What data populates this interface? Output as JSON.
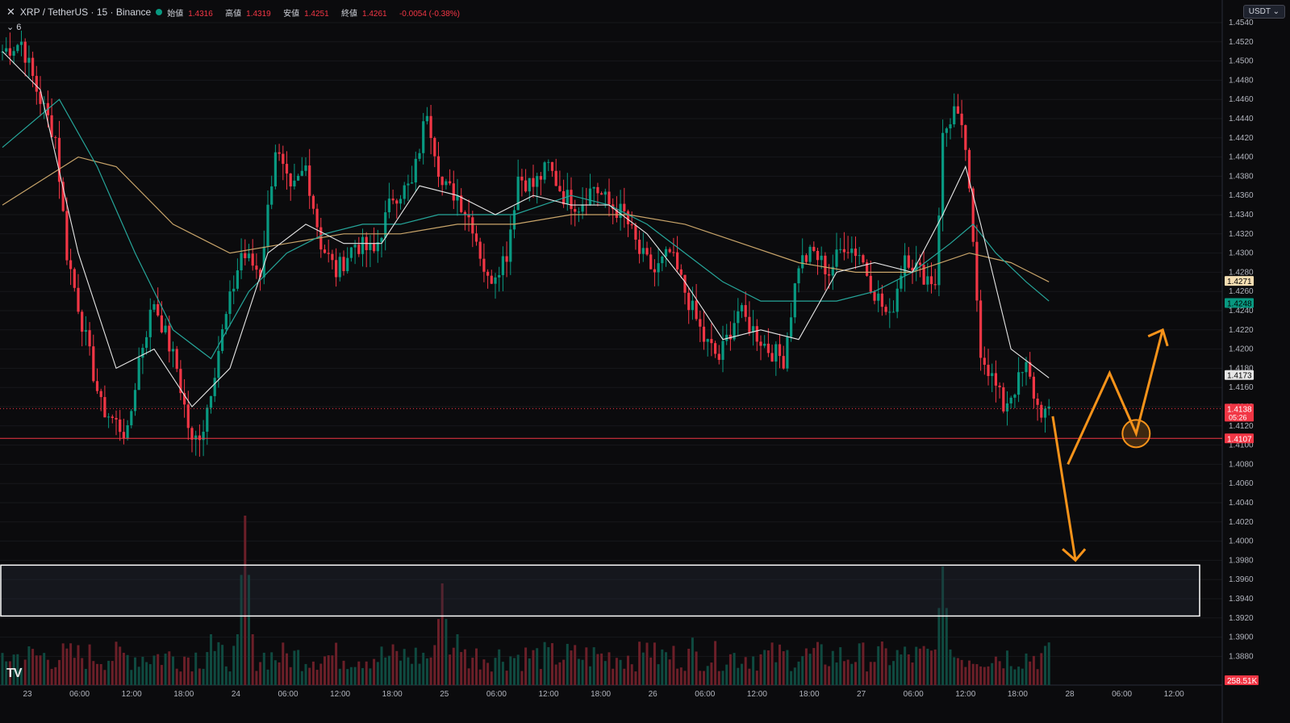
{
  "header": {
    "close_icon": "close-icon",
    "symbol": "XRP / TetherUS · 15 · Binance",
    "open_label": "始値",
    "open": "1.4316",
    "high_label": "高値",
    "high": "1.4319",
    "low_label": "安値",
    "low": "1.4251",
    "close_label": "終値",
    "close": "1.4261",
    "change": "-0.0054 (-0.38%)",
    "indicator_toggle": "6"
  },
  "currency_button": "USDT",
  "logo": "TV",
  "colors": {
    "up": "#089981",
    "down": "#f23645",
    "ma_fast": "#e6e6e6",
    "ma_mid": "#26a69a",
    "ma_slow": "#c9a56a",
    "arrow": "#f7931a",
    "zone": "#ffffff"
  },
  "price_axis": {
    "ticks": [
      "1.4540",
      "1.4520",
      "1.4500",
      "1.4480",
      "1.4460",
      "1.4440",
      "1.4420",
      "1.4400",
      "1.4380",
      "1.4360",
      "1.4340",
      "1.4320",
      "1.4300",
      "1.4280",
      "1.4260",
      "1.4240",
      "1.4220",
      "1.4200",
      "1.4180",
      "1.4160",
      "1.4140",
      "1.4120",
      "1.4100",
      "1.4080",
      "1.4060",
      "1.4040",
      "1.4020",
      "1.4000",
      "1.3980",
      "1.3960",
      "1.3940",
      "1.3920",
      "1.3900",
      "1.3880"
    ],
    "markers": [
      {
        "value": "1.4271",
        "bg": "#f5deb3",
        "fg": "#000000",
        "price": 1.4271
      },
      {
        "value": "1.4248",
        "bg": "#089981",
        "fg": "#000000",
        "price": 1.4248
      },
      {
        "value": "1.4173",
        "bg": "#e6e6e6",
        "fg": "#000000",
        "price": 1.4173
      },
      {
        "value": "1.4138",
        "sub": "05:26",
        "bg": "#f23645",
        "fg": "#ffffff",
        "price": 1.4138
      },
      {
        "value": "1.4107",
        "bg": "#f23645",
        "fg": "#ffffff",
        "price": 1.4107
      }
    ],
    "volume_label": "258.51K"
  },
  "time_axis": [
    "23",
    "06:00",
    "12:00",
    "18:00",
    "24",
    "06:00",
    "12:00",
    "18:00",
    "25",
    "06:00",
    "12:00",
    "18:00",
    "26",
    "06:00",
    "12:00",
    "18:00",
    "27",
    "06:00",
    "12:00",
    "18:00",
    "28",
    "06:00",
    "12:00"
  ],
  "chart_data": {
    "type": "candlestick",
    "ylim": [
      1.387,
      1.455
    ],
    "path": [
      [
        0,
        1.451
      ],
      [
        5,
        1.452
      ],
      [
        9,
        1.447
      ],
      [
        14,
        1.442
      ],
      [
        17,
        1.43
      ],
      [
        22,
        1.421
      ],
      [
        26,
        1.414
      ],
      [
        33,
        1.411
      ],
      [
        36,
        1.419
      ],
      [
        40,
        1.425
      ],
      [
        46,
        1.418
      ],
      [
        50,
        1.41
      ],
      [
        53,
        1.412
      ],
      [
        57,
        1.42
      ],
      [
        63,
        1.43
      ],
      [
        68,
        1.428
      ],
      [
        72,
        1.441
      ],
      [
        76,
        1.436
      ],
      [
        80,
        1.439
      ],
      [
        84,
        1.431
      ],
      [
        88,
        1.428
      ],
      [
        93,
        1.431
      ],
      [
        98,
        1.43
      ],
      [
        103,
        1.436
      ],
      [
        108,
        1.437
      ],
      [
        112,
        1.445
      ],
      [
        116,
        1.437
      ],
      [
        120,
        1.436
      ],
      [
        124,
        1.433
      ],
      [
        128,
        1.427
      ],
      [
        133,
        1.43
      ],
      [
        136,
        1.438
      ],
      [
        140,
        1.437
      ],
      [
        144,
        1.439
      ],
      [
        148,
        1.436
      ],
      [
        152,
        1.435
      ],
      [
        156,
        1.437
      ],
      [
        160,
        1.435
      ],
      [
        164,
        1.434
      ],
      [
        168,
        1.43
      ],
      [
        172,
        1.428
      ],
      [
        176,
        1.43
      ],
      [
        180,
        1.426
      ],
      [
        185,
        1.421
      ],
      [
        189,
        1.419
      ],
      [
        194,
        1.424
      ],
      [
        198,
        1.422
      ],
      [
        202,
        1.42
      ],
      [
        206,
        1.419
      ],
      [
        210,
        1.429
      ],
      [
        214,
        1.43
      ],
      [
        218,
        1.428
      ],
      [
        222,
        1.431
      ],
      [
        226,
        1.43
      ],
      [
        230,
        1.426
      ],
      [
        234,
        1.423
      ],
      [
        238,
        1.43
      ],
      [
        242,
        1.428
      ],
      [
        246,
        1.427
      ],
      [
        248,
        1.442
      ],
      [
        251,
        1.445
      ],
      [
        254,
        1.441
      ],
      [
        258,
        1.42
      ],
      [
        261,
        1.417
      ],
      [
        264,
        1.414
      ],
      [
        267,
        1.416
      ],
      [
        270,
        1.418
      ],
      [
        273,
        1.414
      ],
      [
        276,
        1.413
      ]
    ],
    "ma_fast": [
      [
        0,
        1.451
      ],
      [
        10,
        1.447
      ],
      [
        20,
        1.43
      ],
      [
        30,
        1.418
      ],
      [
        40,
        1.42
      ],
      [
        50,
        1.414
      ],
      [
        60,
        1.418
      ],
      [
        70,
        1.43
      ],
      [
        80,
        1.433
      ],
      [
        90,
        1.431
      ],
      [
        100,
        1.431
      ],
      [
        110,
        1.437
      ],
      [
        120,
        1.436
      ],
      [
        130,
        1.434
      ],
      [
        140,
        1.436
      ],
      [
        150,
        1.435
      ],
      [
        160,
        1.435
      ],
      [
        170,
        1.432
      ],
      [
        180,
        1.427
      ],
      [
        190,
        1.421
      ],
      [
        200,
        1.422
      ],
      [
        210,
        1.421
      ],
      [
        220,
        1.428
      ],
      [
        230,
        1.429
      ],
      [
        240,
        1.428
      ],
      [
        248,
        1.434
      ],
      [
        254,
        1.439
      ],
      [
        258,
        1.433
      ],
      [
        266,
        1.42
      ],
      [
        276,
        1.417
      ]
    ],
    "ma_mid": [
      [
        0,
        1.441
      ],
      [
        15,
        1.446
      ],
      [
        25,
        1.439
      ],
      [
        35,
        1.43
      ],
      [
        45,
        1.422
      ],
      [
        55,
        1.419
      ],
      [
        65,
        1.426
      ],
      [
        75,
        1.43
      ],
      [
        85,
        1.432
      ],
      [
        95,
        1.433
      ],
      [
        105,
        1.433
      ],
      [
        115,
        1.434
      ],
      [
        125,
        1.434
      ],
      [
        135,
        1.434
      ],
      [
        150,
        1.436
      ],
      [
        160,
        1.435
      ],
      [
        170,
        1.433
      ],
      [
        180,
        1.43
      ],
      [
        190,
        1.427
      ],
      [
        200,
        1.425
      ],
      [
        210,
        1.425
      ],
      [
        220,
        1.425
      ],
      [
        230,
        1.426
      ],
      [
        240,
        1.428
      ],
      [
        250,
        1.431
      ],
      [
        256,
        1.433
      ],
      [
        262,
        1.43
      ],
      [
        270,
        1.427
      ],
      [
        276,
        1.425
      ]
    ],
    "ma_slow": [
      [
        0,
        1.435
      ],
      [
        20,
        1.44
      ],
      [
        30,
        1.439
      ],
      [
        45,
        1.433
      ],
      [
        60,
        1.43
      ],
      [
        75,
        1.431
      ],
      [
        90,
        1.432
      ],
      [
        105,
        1.432
      ],
      [
        120,
        1.433
      ],
      [
        135,
        1.433
      ],
      [
        150,
        1.434
      ],
      [
        165,
        1.434
      ],
      [
        180,
        1.433
      ],
      [
        195,
        1.431
      ],
      [
        210,
        1.429
      ],
      [
        225,
        1.428
      ],
      [
        240,
        1.428
      ],
      [
        255,
        1.43
      ],
      [
        266,
        1.429
      ],
      [
        276,
        1.427
      ]
    ],
    "volume_spikes": [
      [
        64,
        1.0
      ],
      [
        116,
        0.6
      ],
      [
        248,
        0.7
      ],
      [
        55,
        0.3
      ],
      [
        120,
        0.3
      ],
      [
        170,
        0.25
      ],
      [
        182,
        0.28
      ]
    ],
    "levels": [
      {
        "price": 1.4138,
        "style": "dotted"
      },
      {
        "price": 1.4107,
        "style": "solid"
      }
    ],
    "zone": {
      "top": 1.3975,
      "bottom": 1.3922
    },
    "projection_down": [
      [
        277,
        1.413
      ],
      [
        283,
        1.398
      ]
    ],
    "projection_zigzag": [
      [
        281,
        1.408
      ],
      [
        292,
        1.4175
      ],
      [
        299,
        1.4112
      ],
      [
        306,
        1.422
      ]
    ],
    "projection_circle": [
      299,
      1.4112
    ]
  }
}
